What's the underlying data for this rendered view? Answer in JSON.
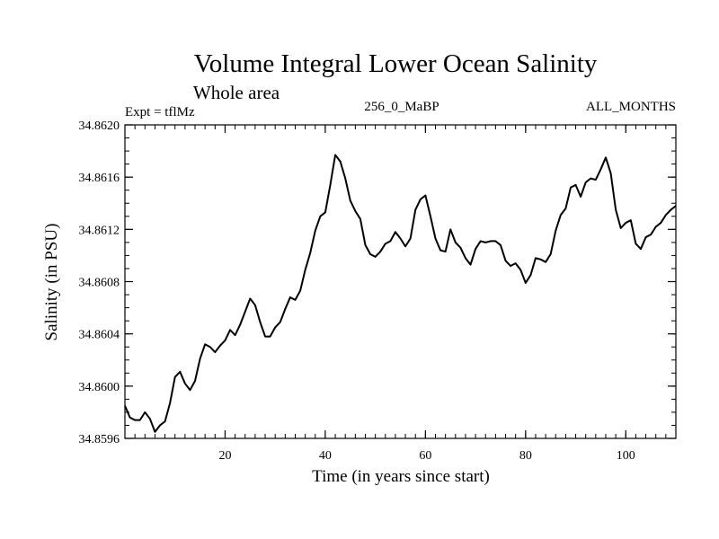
{
  "chart_data": {
    "type": "line",
    "title": "Volume Integral Lower Ocean Salinity",
    "subtitle": "Whole area",
    "left_label": "Expt = tflMz",
    "center_label": "256_0_MaBP",
    "right_label": "ALL_MONTHS",
    "xlabel": "Time (in years since start)",
    "ylabel": "Salinity (in PSU)",
    "xlim": [
      0,
      110
    ],
    "ylim": [
      34.8596,
      34.862
    ],
    "x_ticks": [
      20,
      40,
      60,
      80,
      100
    ],
    "x_tick_labels": [
      "20",
      "40",
      "60",
      "80",
      "100"
    ],
    "y_ticks": [
      34.8596,
      34.86,
      34.8604,
      34.8608,
      34.8612,
      34.8616,
      34.862
    ],
    "y_tick_labels": [
      "34.8596",
      "34.8600",
      "34.8604",
      "34.8608",
      "34.8612",
      "34.8616",
      "34.8620"
    ],
    "x_minor_step": 2,
    "y_minor_step": 0.0001,
    "line_color": "#000000",
    "series": [
      {
        "name": "Salinity",
        "x": [
          0,
          1,
          2,
          3,
          4,
          5,
          6,
          7,
          8,
          9,
          10,
          11,
          12,
          13,
          14,
          15,
          16,
          17,
          18,
          19,
          20,
          21,
          22,
          23,
          24,
          25,
          26,
          27,
          28,
          29,
          30,
          31,
          32,
          33,
          34,
          35,
          36,
          37,
          38,
          39,
          40,
          41,
          42,
          43,
          44,
          45,
          46,
          47,
          48,
          49,
          50,
          51,
          52,
          53,
          54,
          55,
          56,
          57,
          58,
          59,
          60,
          61,
          62,
          63,
          64,
          65,
          66,
          67,
          68,
          69,
          70,
          71,
          72,
          73,
          74,
          75,
          76,
          77,
          78,
          79,
          80,
          81,
          82,
          83,
          84,
          85,
          86,
          87,
          88,
          89,
          90,
          91,
          92,
          93,
          94,
          95,
          96,
          97,
          98,
          99,
          100,
          101,
          102,
          103,
          104,
          105,
          106,
          107,
          108,
          109,
          110
        ],
        "values": [
          34.85985,
          34.85976,
          34.85974,
          34.85974,
          34.8598,
          34.85975,
          34.85965,
          34.8597,
          34.85973,
          34.85987,
          34.86007,
          34.86011,
          34.86002,
          34.85997,
          34.86004,
          34.86021,
          34.86032,
          34.8603,
          34.86026,
          34.86031,
          34.86035,
          34.86043,
          34.86039,
          34.86047,
          34.86057,
          34.86067,
          34.86062,
          34.86049,
          34.86038,
          34.86038,
          34.86045,
          34.86049,
          34.86059,
          34.86068,
          34.86066,
          34.86073,
          34.86089,
          34.86102,
          34.86119,
          34.8613,
          34.86133,
          34.86154,
          34.86177,
          34.86172,
          34.86159,
          34.86142,
          34.86134,
          34.86128,
          34.86108,
          34.86101,
          34.86099,
          34.86103,
          34.86109,
          34.86111,
          34.86118,
          34.86113,
          34.86107,
          34.86113,
          34.86135,
          34.86143,
          34.86146,
          34.8613,
          34.86113,
          34.86104,
          34.86103,
          34.8612,
          34.8611,
          34.86106,
          34.86098,
          34.86093,
          34.86105,
          34.86111,
          34.8611,
          34.86111,
          34.86111,
          34.86108,
          34.86096,
          34.86092,
          34.86094,
          34.86089,
          34.86079,
          34.86085,
          34.86098,
          34.86097,
          34.86095,
          34.86101,
          34.86119,
          34.86131,
          34.86136,
          34.86152,
          34.86154,
          34.86145,
          34.86156,
          34.86159,
          34.86158,
          34.86166,
          34.86175,
          34.86163,
          34.86135,
          34.86121,
          34.86125,
          34.86127,
          34.86109,
          34.86105,
          34.86114,
          34.86116,
          34.86122,
          34.86125,
          34.86131,
          34.86135,
          34.86138
        ]
      }
    ]
  }
}
